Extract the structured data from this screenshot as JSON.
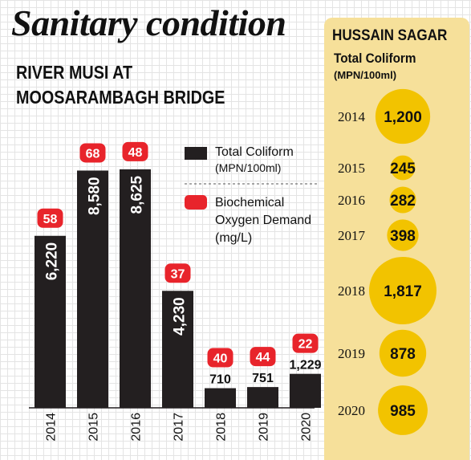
{
  "headline": "Sanitary condition",
  "subhead": [
    "RIVER MUSI AT",
    "MOOSARAMBAGH BRIDGE"
  ],
  "colors": {
    "bar": "#231f20",
    "bod_badge": "#e8242b",
    "bubble": "#f2c300",
    "panel": "#f6e09a"
  },
  "chart_data": [
    {
      "type": "bar",
      "title": "RIVER MUSI AT MOOSARAMBAGH BRIDGE",
      "categories": [
        "2014",
        "2015",
        "2016",
        "2017",
        "2018",
        "2019",
        "2020"
      ],
      "series": [
        {
          "name": "Total Coliform",
          "unit": "(MPN/100ml)",
          "values": [
            6220,
            8580,
            8625,
            4230,
            710,
            751,
            1229
          ],
          "labels": [
            "6,220",
            "8,580",
            "8,625",
            "4,230",
            "710",
            "751",
            "1,229"
          ]
        },
        {
          "name": "Biochemical Oxygen Demand",
          "unit": "(mg/L)",
          "values": [
            58,
            68,
            48,
            37,
            40,
            44,
            22
          ],
          "labels": [
            "58",
            "68",
            "48",
            "37",
            "40",
            "44",
            "22"
          ]
        }
      ],
      "legend": [
        {
          "lines": [
            "Total Coliform",
            "(MPN/100ml)"
          ]
        },
        {
          "lines": [
            "Biochemical",
            "Oxygen Demand",
            "(mg/L)"
          ]
        }
      ],
      "legend_position": "top-right",
      "ylim": [
        0,
        9000
      ],
      "grid": true
    },
    {
      "type": "bubble",
      "title": "HUSSAIN SAGAR",
      "subtitle": "Total Coliform",
      "unit": "(MPN/100ml)",
      "categories": [
        "2014",
        "2015",
        "2016",
        "2017",
        "2018",
        "2019",
        "2020"
      ],
      "values": [
        1200,
        245,
        282,
        398,
        1817,
        878,
        985
      ],
      "labels": [
        "1,200",
        "245",
        "282",
        "398",
        "1,817",
        "878",
        "985"
      ]
    }
  ]
}
